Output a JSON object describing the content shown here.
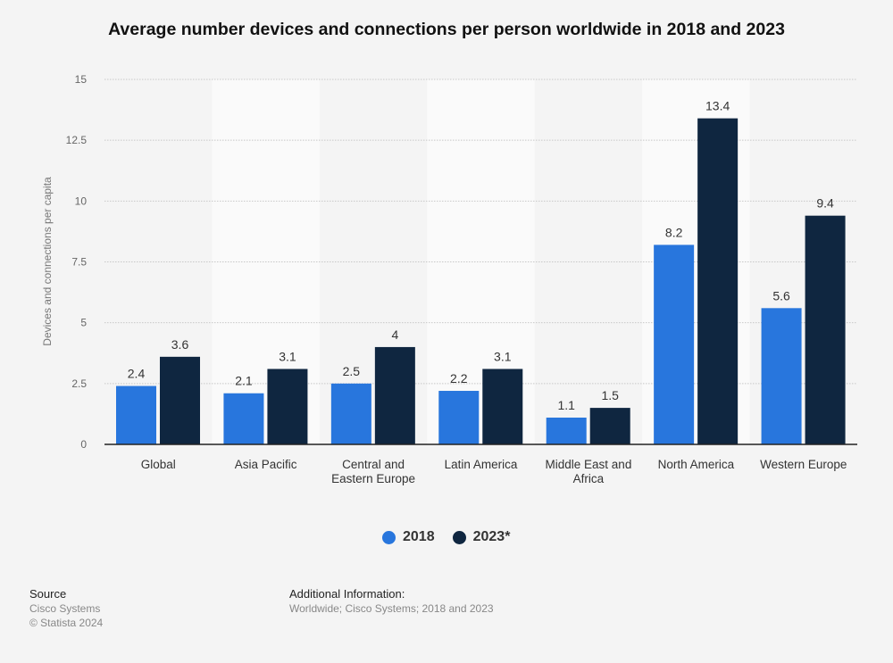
{
  "chart_data": {
    "type": "bar",
    "title": "Average number devices and connections per person worldwide in 2018 and 2023",
    "xlabel": "",
    "ylabel": "Devices and connections per capita",
    "ylim": [
      0,
      15
    ],
    "yticks": [
      "0",
      "2.5",
      "5",
      "7.5",
      "10",
      "12.5",
      "15"
    ],
    "grid": true,
    "legend_position": "bottom",
    "categories": [
      [
        "Global"
      ],
      [
        "Asia Pacific"
      ],
      [
        "Central and",
        "Eastern Europe"
      ],
      [
        "Latin America"
      ],
      [
        "Middle East and",
        "Africa"
      ],
      [
        "North America"
      ],
      [
        "Western Europe"
      ]
    ],
    "series": [
      {
        "name": "2018",
        "color": "#2876dd",
        "values": [
          2.4,
          2.1,
          2.5,
          2.2,
          1.1,
          8.2,
          5.6
        ],
        "labels": [
          "2.4",
          "2.1",
          "2.5",
          "2.2",
          "1.1",
          "8.2",
          "5.6"
        ]
      },
      {
        "name": "2023*",
        "color": "#0f2640",
        "values": [
          3.6,
          3.1,
          4,
          3.1,
          1.5,
          13.4,
          9.4
        ],
        "labels": [
          "3.6",
          "3.1",
          "4",
          "3.1",
          "1.5",
          "13.4",
          "9.4"
        ]
      }
    ]
  },
  "footer": {
    "source_heading": "Source",
    "source_lines": [
      "Cisco Systems",
      "© Statista 2024"
    ],
    "info_heading": "Additional Information:",
    "info_text": "Worldwide; Cisco Systems; 2018 and 2023"
  }
}
